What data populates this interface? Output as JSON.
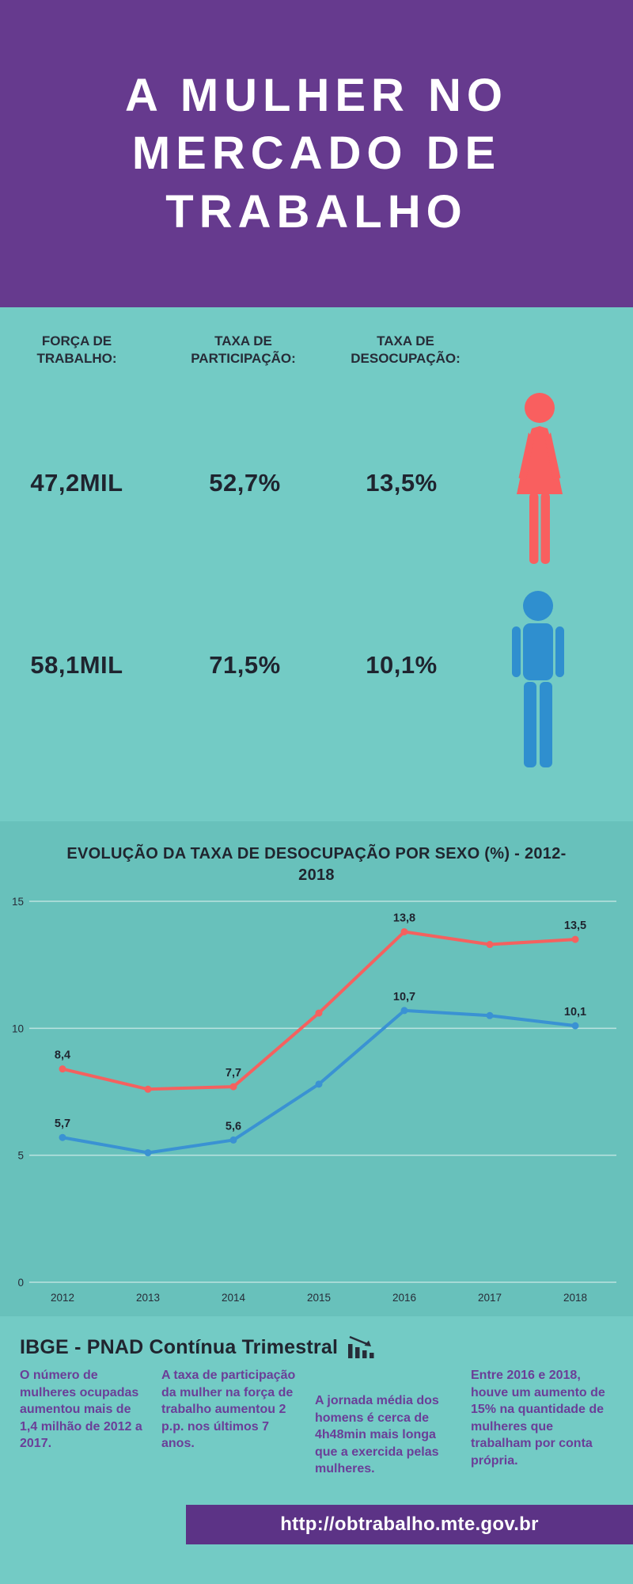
{
  "header": {
    "title_lines": [
      "A MULHER NO",
      "MERCADO DE",
      "TRABALHO"
    ]
  },
  "stats": {
    "columns": [
      {
        "label": "FORÇA DE TRABALHO:"
      },
      {
        "label": "TAXA DE PARTICIPAÇÃO:"
      },
      {
        "label": "TAXA DE DESOCUPAÇÃO:"
      }
    ],
    "rows": [
      {
        "group": "mulheres",
        "icon": "woman-icon",
        "color": "#f95f5f",
        "forca": "47,2MIL",
        "participacao": "52,7%",
        "desocupacao": "13,5%"
      },
      {
        "group": "homens",
        "icon": "man-icon",
        "color": "#2f8fcf",
        "forca": "58,1MIL",
        "participacao": "71,5%",
        "desocupacao": "10,1%"
      }
    ]
  },
  "chart_data": {
    "type": "line",
    "title": "EVOLUÇÃO DA TAXA DE DESOCUPAÇÃO POR SEXO (%) - 2012-2018",
    "categories": [
      "2012",
      "2013",
      "2014",
      "2015",
      "2016",
      "2017",
      "2018"
    ],
    "series": [
      {
        "name": "Mulheres",
        "color": "#f4615f",
        "values": [
          8.4,
          7.6,
          7.7,
          10.6,
          13.8,
          13.3,
          13.5
        ],
        "labels": [
          "8,4",
          "",
          "7,7",
          "",
          "13,8",
          "",
          "13,5"
        ]
      },
      {
        "name": "Homens",
        "color": "#3a92d3",
        "values": [
          5.7,
          5.1,
          5.6,
          7.8,
          10.7,
          10.5,
          10.1
        ],
        "labels": [
          "5,7",
          "",
          "5,6",
          "",
          "10,7",
          "",
          "10,1"
        ]
      }
    ],
    "xlabel": "",
    "ylabel": "",
    "ylim": [
      0,
      15
    ],
    "yticks": [
      0,
      5,
      10,
      15
    ],
    "grid": true,
    "legend": false
  },
  "source": {
    "heading": "IBGE - PNAD Contínua Trimestral",
    "icon": "declining-bar-chart-icon"
  },
  "facts": [
    "O número de mulheres ocupadas aumentou mais de 1,4 milhão de 2012 a 2017.",
    "A taxa de participação da mulher na força de trabalho aumentou 2 p.p. nos últimos 7 anos.",
    "A jornada média dos homens é cerca de 4h48min mais longa que a exercida pelas mulheres.",
    "Entre 2016 e 2018, houve um aumento de 15% na quantidade de mulheres que trabalham por conta própria."
  ],
  "footer": {
    "url": "http://obtrabalho.mte.gov.br"
  },
  "colors": {
    "purple": "#663a8e",
    "footer_purple": "#5c3386",
    "teal": "#73cbc5",
    "teal_dark": "#68c1bb",
    "red": "#f95f5f",
    "blue": "#2f8fcf",
    "text_dark": "#272c38",
    "fact_purple": "#6b3e98"
  }
}
